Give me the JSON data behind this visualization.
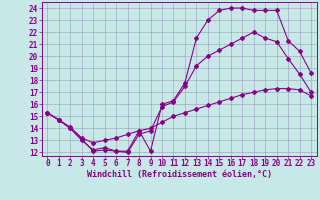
{
  "xlabel": "Windchill (Refroidissement éolien,°C)",
  "bg_color": "#c8e8e8",
  "line_color": "#880088",
  "grid_color": "#9999bb",
  "xlim_min": -0.5,
  "xlim_max": 23.5,
  "ylim_min": 11.7,
  "ylim_max": 24.5,
  "xticks": [
    0,
    1,
    2,
    3,
    4,
    5,
    6,
    7,
    8,
    9,
    10,
    11,
    12,
    13,
    14,
    15,
    16,
    17,
    18,
    19,
    20,
    21,
    22,
    23
  ],
  "yticks": [
    12,
    13,
    14,
    15,
    16,
    17,
    18,
    19,
    20,
    21,
    22,
    23,
    24
  ],
  "line1_x": [
    0,
    1,
    2,
    3,
    4,
    5,
    6,
    7,
    8,
    9,
    10,
    11,
    12,
    13,
    14,
    15,
    16,
    17,
    18,
    19,
    20,
    21,
    22,
    23
  ],
  "line1_y": [
    15.3,
    14.7,
    14.0,
    13.1,
    12.1,
    12.2,
    12.1,
    12.1,
    13.8,
    12.1,
    16.0,
    16.3,
    17.8,
    21.5,
    23.0,
    23.8,
    24.0,
    24.0,
    23.8,
    23.8,
    23.8,
    21.3,
    20.4,
    18.6
  ],
  "line2_x": [
    0,
    1,
    2,
    3,
    4,
    5,
    6,
    7,
    8,
    9,
    10,
    11,
    12,
    13,
    14,
    15,
    16,
    17,
    18,
    19,
    20,
    21,
    22,
    23
  ],
  "line2_y": [
    15.3,
    14.7,
    14.0,
    13.0,
    12.2,
    12.4,
    12.1,
    12.0,
    13.5,
    13.8,
    15.8,
    16.2,
    17.5,
    19.2,
    20.0,
    20.5,
    21.0,
    21.5,
    22.0,
    21.5,
    21.2,
    19.8,
    18.5,
    17.0
  ],
  "line3_x": [
    0,
    1,
    2,
    3,
    4,
    5,
    6,
    7,
    8,
    9,
    10,
    11,
    12,
    13,
    14,
    15,
    16,
    17,
    18,
    19,
    20,
    21,
    22,
    23
  ],
  "line3_y": [
    15.3,
    14.7,
    14.1,
    13.2,
    12.8,
    13.0,
    13.2,
    13.5,
    13.8,
    14.0,
    14.5,
    15.0,
    15.3,
    15.6,
    15.9,
    16.2,
    16.5,
    16.8,
    17.0,
    17.2,
    17.3,
    17.3,
    17.2,
    16.7
  ],
  "xlabel_fontsize": 6.0,
  "tick_fontsize": 5.5,
  "marker_size": 2.0,
  "line_width": 0.8
}
